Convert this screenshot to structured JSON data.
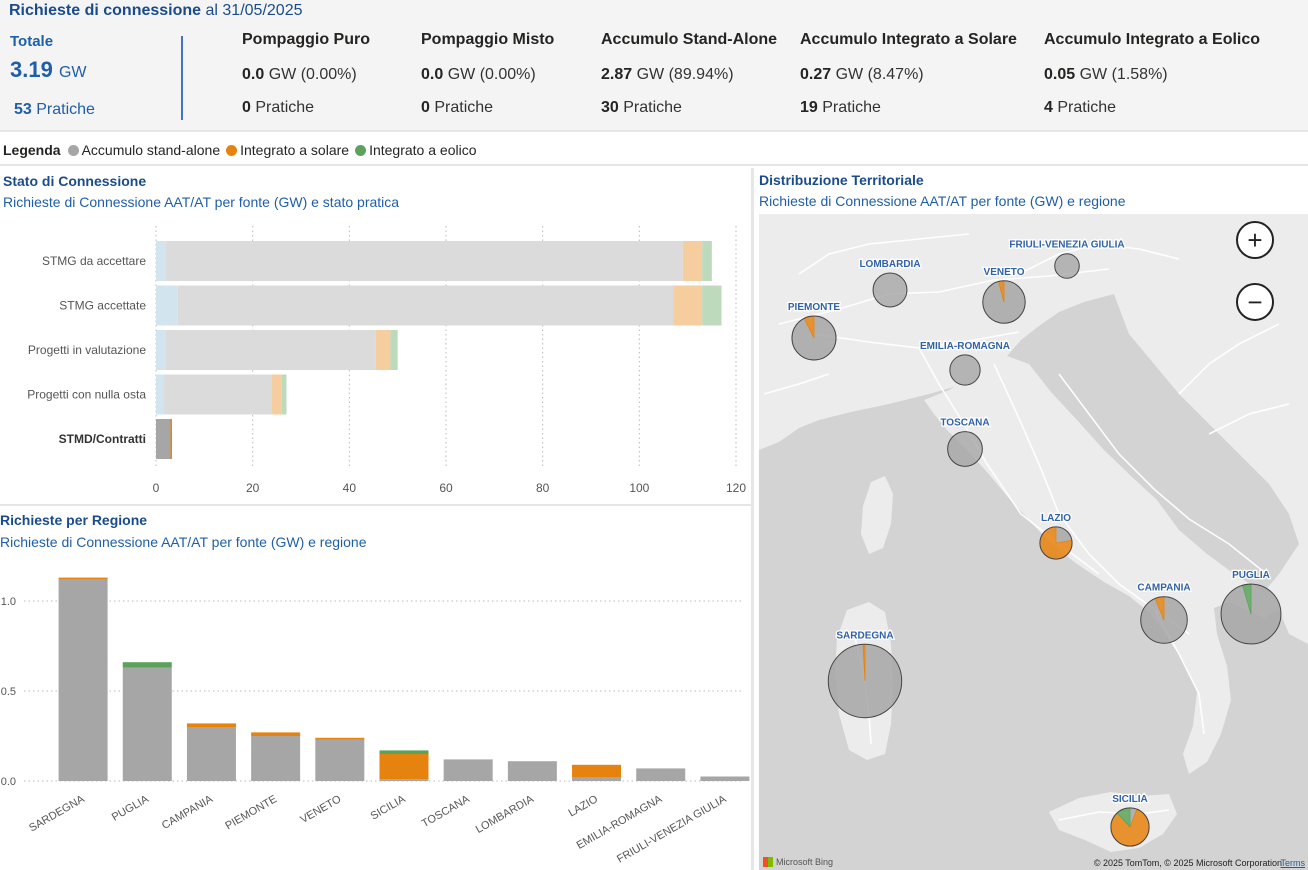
{
  "header": {
    "title_bold": "Richieste di connessione",
    "title_rest": " al 31/05/2025",
    "total": {
      "label": "Totale",
      "value": "3.19",
      "unit": "GW",
      "count": "53",
      "count_label": "Pratiche"
    },
    "kpis": [
      {
        "name": "Pompaggio Puro",
        "gw": "0.0",
        "unit": "GW",
        "pct": "(0.00%)",
        "count": "0",
        "count_label": "Pratiche"
      },
      {
        "name": "Pompaggio Misto",
        "gw": "0.0",
        "unit": "GW",
        "pct": "(0.00%)",
        "count": "0",
        "count_label": "Pratiche"
      },
      {
        "name": "Accumulo Stand-Alone",
        "gw": "2.87",
        "unit": "GW",
        "pct": "(89.94%)",
        "count": "30",
        "count_label": "Pratiche"
      },
      {
        "name": "Accumulo Integrato a Solare",
        "gw": "0.27",
        "unit": "GW",
        "pct": "(8.47%)",
        "count": "19",
        "count_label": "Pratiche"
      },
      {
        "name": "Accumulo Integrato a Eolico",
        "gw": "0.05",
        "unit": "GW",
        "pct": "(1.58%)",
        "count": "4",
        "count_label": "Pratiche"
      }
    ]
  },
  "legend": {
    "title": "Legenda",
    "items": [
      {
        "label": "Accumulo stand-alone",
        "color": "#a6a6a6"
      },
      {
        "label": "Integrato a solare",
        "color": "#e6820e"
      },
      {
        "label": "Integrato a eolico",
        "color": "#5ba35b"
      }
    ]
  },
  "panels": {
    "stato": {
      "title": "Stato di Connessione",
      "subtitle": "Richieste di Connessione AAT/AT per fonte (GW) e stato pratica"
    },
    "regione": {
      "title": "Richieste per Regione",
      "subtitle": "Richieste di Connessione AAT/AT per fonte (GW) e regione"
    },
    "map": {
      "title": "Distribuzione Territoriale",
      "subtitle": "Richieste di Connessione AAT/AT per fonte (GW) e regione"
    }
  },
  "colors": {
    "standalone": "#a6a6a6",
    "solare": "#e6820e",
    "eolico": "#5ba35b",
    "pompaggio": "#8fbcd4",
    "title_blue": "#1a4c8b"
  },
  "chart_data": [
    {
      "type": "bar",
      "orientation": "horizontal",
      "stacked": true,
      "title": "Stato di Connessione",
      "subtitle": "Richieste di Connessione AAT/AT per fonte (GW) e stato pratica",
      "categories": [
        "STMG da accettare",
        "STMG accettate",
        "Progetti in valutazione",
        "Progetti con nulla osta",
        "STMD/Contratti"
      ],
      "highlighted_category": "STMD/Contratti",
      "series": [
        {
          "color": "#8fbcd4",
          "values": [
            2,
            4.5,
            2,
            1.5,
            0
          ]
        },
        {
          "color": "#a6a6a6",
          "values": [
            107,
            102.5,
            43.5,
            22.5,
            3
          ]
        },
        {
          "color": "#e6820e",
          "values": [
            4,
            6,
            3,
            2,
            0.3
          ]
        },
        {
          "color": "#5ba35b",
          "values": [
            2,
            4,
            1.5,
            1,
            0
          ]
        }
      ],
      "xlim": [
        0,
        120
      ],
      "xticks": [
        0,
        20,
        40,
        60,
        80,
        100,
        120
      ],
      "grid": true
    },
    {
      "type": "bar",
      "stacked": true,
      "title": "Richieste per Regione",
      "subtitle": "Richieste di Connessione AAT/AT per fonte (GW) e regione",
      "categories": [
        "SARDEGNA",
        "PUGLIA",
        "CAMPANIA",
        "PIEMONTE",
        "VENETO",
        "SICILIA",
        "TOSCANA",
        "LOMBARDIA",
        "LAZIO",
        "EMILIA-ROMAGNA",
        "FRIULI-VENEZIA GIULIA"
      ],
      "series": [
        {
          "color": "#a6a6a6",
          "values": [
            1.12,
            0.63,
            0.3,
            0.25,
            0.23,
            0.01,
            0.12,
            0.11,
            0.02,
            0.07,
            0.025
          ]
        },
        {
          "color": "#e6820e",
          "values": [
            0.01,
            0.0,
            0.02,
            0.02,
            0.01,
            0.14,
            0.0,
            0.0,
            0.07,
            0.0,
            0.0
          ]
        },
        {
          "color": "#5ba35b",
          "values": [
            0.0,
            0.03,
            0.0,
            0.0,
            0.0,
            0.02,
            0.0,
            0.0,
            0.0,
            0.0,
            0.0
          ]
        }
      ],
      "ylim": [
        0,
        1.2
      ],
      "yticks": [
        0.0,
        0.5,
        1.0
      ],
      "ytick_labels": [
        "0.0",
        "0.5",
        "1.0"
      ],
      "grid": true
    },
    {
      "type": "pie",
      "subtype": "map-bubbles",
      "title": "Distribuzione Territoriale",
      "subtitle": "Richieste di Connessione AAT/AT per fonte (GW) e regione",
      "slice_colors": [
        "#a6a6a6",
        "#e6820e",
        "#5ba35b"
      ],
      "regions": [
        {
          "name": "FRIULI-VENEZIA GIULIA",
          "standalone": 0.025,
          "solare": 0,
          "eolico": 0
        },
        {
          "name": "LOMBARDIA",
          "standalone": 0.11,
          "solare": 0,
          "eolico": 0
        },
        {
          "name": "VENETO",
          "standalone": 0.23,
          "solare": 0.01,
          "eolico": 0
        },
        {
          "name": "PIEMONTE",
          "standalone": 0.25,
          "solare": 0.02,
          "eolico": 0
        },
        {
          "name": "EMILIA-ROMAGNA",
          "standalone": 0.07,
          "solare": 0,
          "eolico": 0
        },
        {
          "name": "TOSCANA",
          "standalone": 0.12,
          "solare": 0,
          "eolico": 0
        },
        {
          "name": "LAZIO",
          "standalone": 0.02,
          "solare": 0.07,
          "eolico": 0
        },
        {
          "name": "CAMPANIA",
          "standalone": 0.3,
          "solare": 0.02,
          "eolico": 0
        },
        {
          "name": "PUGLIA",
          "standalone": 0.63,
          "solare": 0,
          "eolico": 0.03
        },
        {
          "name": "SARDEGNA",
          "standalone": 1.12,
          "solare": 0.01,
          "eolico": 0
        },
        {
          "name": "SICILIA",
          "standalone": 0.01,
          "solare": 0.14,
          "eolico": 0.02
        }
      ]
    }
  ],
  "map": {
    "zoom_in_symbol": "+",
    "zoom_out_symbol": "−",
    "bing_label": "Microsoft Bing",
    "copyright": "© 2025 TomTom, © 2025 Microsoft Corporation",
    "terms": "Terms"
  }
}
